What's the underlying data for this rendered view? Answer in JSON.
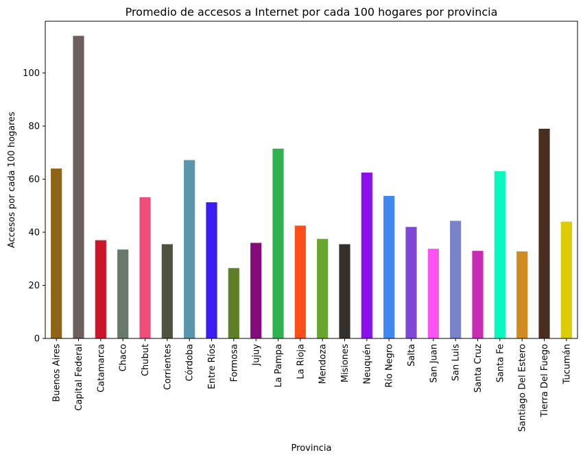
{
  "chart_data": {
    "type": "bar",
    "title": "Promedio de accesos a Internet por cada 100 hogares por provincia",
    "xlabel": "Provincia",
    "ylabel": "Accesos por cada 100 hogares",
    "ylim": [
      0,
      119.5
    ],
    "yticks": [
      0,
      20,
      40,
      60,
      80,
      100
    ],
    "grid": false,
    "categories": [
      "Buenos Aires",
      "Capital Federal",
      "Catamarca",
      "Chaco",
      "Chubut",
      "Corrientes",
      "Córdoba",
      "Entre Ríos",
      "Formosa",
      "Jujuy",
      "La Pampa",
      "La Rioja",
      "Mendoza",
      "Misiones",
      "Neuquén",
      "Río Negro",
      "Salta",
      "San Juan",
      "San Luis",
      "Santa Cruz",
      "Santa Fe",
      "Santiago Del Estero",
      "Tierra Del Fuego",
      "Tucumán"
    ],
    "values": [
      64.0,
      114.0,
      37.0,
      33.5,
      53.2,
      35.5,
      67.2,
      51.3,
      26.5,
      36.0,
      71.5,
      42.5,
      37.5,
      35.5,
      62.5,
      53.7,
      42.0,
      33.8,
      44.3,
      33.0,
      63.0,
      32.8,
      79.0,
      44.0
    ],
    "colors": [
      "#8f6417",
      "#6e5f5f",
      "#cd152a",
      "#68796d",
      "#ef4e7a",
      "#4f523e",
      "#5996ab",
      "#3b1cf5",
      "#5e7f28",
      "#830c7a",
      "#2fb24f",
      "#fd4f17",
      "#67a72d",
      "#36302c",
      "#8b10ee",
      "#4087f1",
      "#7e47d6",
      "#fd53f3",
      "#7883c9",
      "#c82cb5",
      "#08f9c0",
      "#d08c1f",
      "#472e1e",
      "#ddcb04"
    ]
  }
}
